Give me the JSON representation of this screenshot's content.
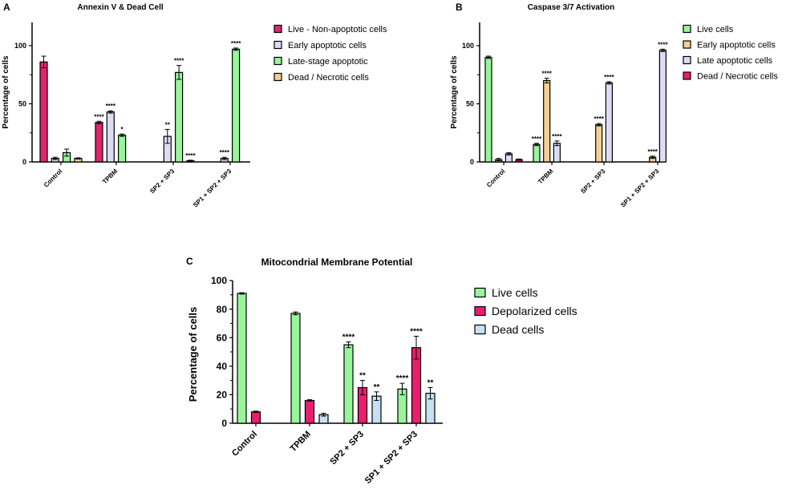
{
  "colors": {
    "live": "#98f59a",
    "depolarized": "#ea1e6e",
    "dead": "#c6e1f1",
    "early": "#dcdcf2",
    "dead_necrotic": "#f5cc8e",
    "live_pink": "#e0246e",
    "late_blue": "#dcdcf5",
    "early_orange": "#f6cf92"
  },
  "chart_data": [
    {
      "panel": "A",
      "type": "bar",
      "title": "Annexin V & Dead Cell",
      "xlabel": "",
      "ylabel": "Percentage of cells",
      "ylim": [
        0,
        120
      ],
      "yticks": [
        "0",
        "50",
        "100"
      ],
      "categories": [
        "Control",
        "TPBM",
        "SP2 + SP3",
        "SP1 + SP2 + SP3"
      ],
      "legend_position": "right",
      "series": [
        {
          "name": "Live - Non-apoptotic cells",
          "color": "#e0246e",
          "values": [
            86,
            34,
            0,
            0
          ],
          "errors": [
            5,
            1,
            0,
            0
          ],
          "sig": [
            "",
            "****",
            "",
            ""
          ]
        },
        {
          "name": "Early apoptotic cells",
          "color": "#dcdcf2",
          "values": [
            3,
            43,
            22,
            3
          ],
          "errors": [
            1,
            1,
            6,
            1
          ],
          "sig": [
            "",
            "****",
            "**",
            "****"
          ]
        },
        {
          "name": "Late-stage apoptotic",
          "color": "#98f59a",
          "values": [
            8,
            23,
            77,
            97
          ],
          "errors": [
            3,
            1,
            6,
            1
          ],
          "sig": [
            "",
            "*",
            "****",
            "****"
          ]
        },
        {
          "name": "Dead / Necrotic cells",
          "color": "#f5cc8e",
          "values": [
            3,
            0,
            1,
            0
          ],
          "errors": [
            0.5,
            0,
            0.5,
            0
          ],
          "sig": [
            "",
            "",
            "****",
            ""
          ]
        }
      ]
    },
    {
      "panel": "B",
      "type": "bar",
      "title": "Caspase 3/7 Activation",
      "xlabel": "",
      "ylabel": "Percentage of cells",
      "ylim": [
        0,
        120
      ],
      "yticks": [
        "0",
        "50",
        "100"
      ],
      "categories": [
        "Control",
        "TPBM",
        "SP2 + SP3",
        "SP1 + SP2 + SP3"
      ],
      "legend_position": "right",
      "series": [
        {
          "name": "Live cells",
          "color": "#98f59a",
          "values": [
            90,
            15,
            0,
            0
          ],
          "errors": [
            1,
            1,
            0,
            0
          ],
          "sig": [
            "",
            "****",
            "",
            ""
          ]
        },
        {
          "name": "Early apoptotic cells",
          "color": "#f6cf92",
          "values": [
            2,
            70,
            32,
            4
          ],
          "errors": [
            1,
            2,
            1,
            1
          ],
          "sig": [
            "",
            "****",
            "****",
            "****"
          ]
        },
        {
          "name": "Late apoptotic cells",
          "color": "#dcdcf5",
          "values": [
            7,
            16,
            68,
            96
          ],
          "errors": [
            1,
            2,
            1,
            1
          ],
          "sig": [
            "",
            "****",
            "****",
            "****"
          ]
        },
        {
          "name": "Dead / Necrotic cells",
          "color": "#ea1e6e",
          "values": [
            2,
            0,
            0,
            0
          ],
          "errors": [
            0.5,
            0,
            0,
            0
          ],
          "sig": [
            "",
            "",
            "",
            ""
          ]
        }
      ]
    },
    {
      "panel": "C",
      "type": "bar",
      "title": "Mitocondrial Membrane Potential",
      "xlabel": "",
      "ylabel": "Percentage of cells",
      "ylim": [
        0,
        100
      ],
      "yticks": [
        "0",
        "20",
        "40",
        "60",
        "80",
        "100"
      ],
      "categories": [
        "Control",
        "TPBM",
        "SP2 + SP3",
        "SP1 + SP2 + SP3"
      ],
      "legend_position": "right",
      "series": [
        {
          "name": "Live cells",
          "color": "#98f59a",
          "values": [
            91,
            77,
            55,
            24
          ],
          "errors": [
            0.5,
            1,
            2,
            4
          ],
          "sig": [
            "",
            "",
            "****",
            "****"
          ]
        },
        {
          "name": "Depolarized cells",
          "color": "#ea1e6e",
          "values": [
            8,
            16,
            25,
            53
          ],
          "errors": [
            0.5,
            0.5,
            5,
            8
          ],
          "sig": [
            "",
            "",
            "**",
            "****"
          ]
        },
        {
          "name": "Dead cells",
          "color": "#c6e1f1",
          "values": [
            0,
            6,
            19,
            21
          ],
          "errors": [
            0,
            1,
            3,
            4
          ],
          "sig": [
            "",
            "",
            "**",
            "**"
          ]
        }
      ]
    }
  ]
}
